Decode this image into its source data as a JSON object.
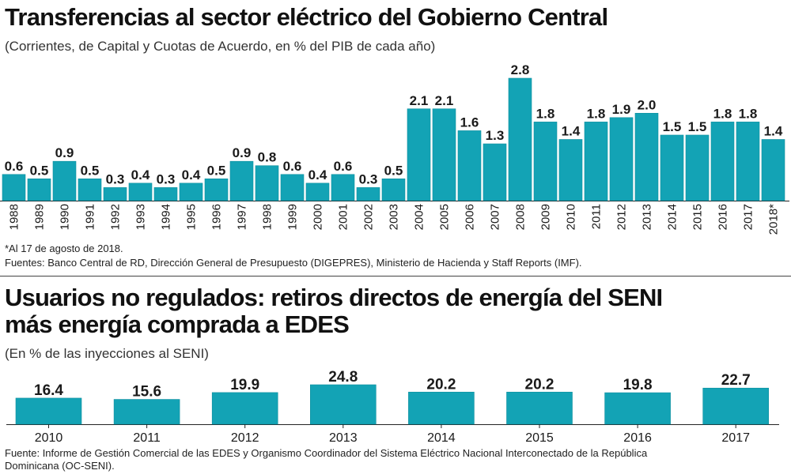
{
  "colors": {
    "bar": "#13a3b5",
    "bar_edge": "#0f8f9f",
    "text": "#1a1a1a",
    "axis": "#222222"
  },
  "chart_data": [
    {
      "type": "bar",
      "title": "Transferencias al sector eléctrico  del Gobierno Central",
      "subtitle": "(Corrientes, de Capital y Cuotas de Acuerdo, en % del PIB de cada año)",
      "categories": [
        "1988",
        "1989",
        "1990",
        "1991",
        "1992",
        "1993",
        "1994",
        "1995",
        "1996",
        "1997",
        "1998",
        "1999",
        "2000",
        "2001",
        "2002",
        "2003",
        "2004",
        "2005",
        "2006",
        "2007",
        "2008",
        "2009",
        "2010",
        "2011",
        "2012",
        "2013",
        "2014",
        "2015",
        "2016",
        "2017",
        "2018*"
      ],
      "values": [
        0.6,
        0.5,
        0.9,
        0.5,
        0.3,
        0.4,
        0.3,
        0.4,
        0.5,
        0.9,
        0.8,
        0.6,
        0.4,
        0.6,
        0.3,
        0.5,
        2.1,
        2.1,
        1.6,
        1.3,
        2.8,
        1.8,
        1.4,
        1.8,
        1.9,
        2.0,
        1.5,
        1.5,
        1.8,
        1.8,
        1.4
      ],
      "labels": [
        "0.6",
        "0.5",
        "0.9",
        "0.5",
        "0.3",
        "0.4",
        "0.3",
        "0.4",
        "0.5",
        "0.9",
        "0.8",
        "0.6",
        "0.4",
        "0.6",
        "0.3",
        "0.5",
        "2.1",
        "2.1",
        "1.6",
        "1.3",
        "2.8",
        "1.8",
        "1.4",
        "1.8",
        "1.9",
        "2.0",
        "1.5",
        "1.5",
        "1.8",
        "1.8",
        "1.4"
      ],
      "xlabel": "",
      "ylabel": "",
      "ylim": [
        0,
        2.8
      ],
      "grid": false,
      "footnote": "*Al 17 de agosto de 2018.",
      "source": "Fuentes: Banco Central de RD, Dirección General de Presupuesto (DIGEPRES), Ministerio de Hacienda y Staff Reports (IMF)."
    },
    {
      "type": "bar",
      "title_line1": "Usuarios no regulados: retiros directos de energía del SENI",
      "title_line2": "más energía comprada a EDES",
      "subtitle": "(En % de las inyecciones al SENI)",
      "categories": [
        "2010",
        "2011",
        "2012",
        "2013",
        "2014",
        "2015",
        "2016",
        "2017"
      ],
      "values": [
        16.4,
        15.6,
        19.9,
        24.8,
        20.2,
        20.2,
        19.8,
        22.7
      ],
      "labels": [
        "16.4",
        "15.6",
        "19.9",
        "24.8",
        "20.2",
        "20.2",
        "19.8",
        "22.7"
      ],
      "xlabel": "",
      "ylabel": "",
      "ylim": [
        0,
        24.8
      ],
      "grid": false,
      "source_line1": "Fuente:  Informe de Gestión Comercial de las EDES y Organismo Coordinador del Sistema Eléctrico Nacional Interconectado de la República",
      "source_line2": "Dominicana (OC-SENI)."
    }
  ]
}
